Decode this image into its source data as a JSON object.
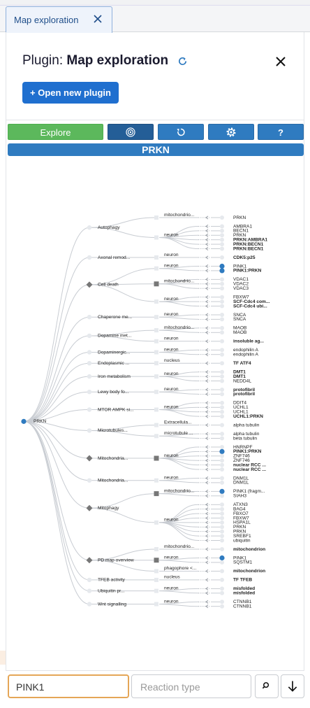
{
  "tab": "Map exploration",
  "header": {
    "prefix": "Plugin:",
    "title": "Map exploration"
  },
  "open_button": "Open new plugin",
  "toolbar": {
    "explore": "Explore",
    "help": "?"
  },
  "target": "PRKN",
  "tree": {
    "root": "PRKN",
    "children": [
      {
        "label": "Autophagy",
        "compartments": [
          {
            "label": "mitochondrio...",
            "leaves": [
              {
                "label": "PRKN"
              }
            ]
          },
          {
            "label": "neuron",
            "leaves": [
              {
                "label": "AMBRA1"
              },
              {
                "label": "BECN1"
              },
              {
                "label": "PRKN"
              },
              {
                "label": "PRKN:AMBRA1",
                "bold": true
              },
              {
                "label": "PRKN:BECN1",
                "bold": true
              },
              {
                "label": "PRKN:BECN1",
                "bold": true
              }
            ]
          }
        ]
      },
      {
        "label": "Axonal remod...",
        "compartments": [
          {
            "label": "neuron",
            "leaves": [
              {
                "label": "CDK5:p25",
                "bold": true
              }
            ]
          }
        ]
      },
      {
        "label": "Cell death",
        "marker": "diamond",
        "compartments": [
          {
            "label": "neuron",
            "leaves": [
              {
                "label": "PINK1",
                "highlight": true
              },
              {
                "label": "PINK1:PRKN",
                "bold": true,
                "highlight": true
              }
            ]
          },
          {
            "label": "mitochondrio...",
            "marker": "square",
            "leaves": [
              {
                "label": "VDAC1"
              },
              {
                "label": "VDAC2"
              },
              {
                "label": "VDAC3"
              }
            ]
          },
          {
            "label": "neuron",
            "leaves": [
              {
                "label": "FBXW7"
              },
              {
                "label": "SCF-Cdc4 com...",
                "bold": true
              },
              {
                "label": "SCF-Cdc4 ubi...",
                "bold": true
              }
            ]
          }
        ]
      },
      {
        "label": "Chaperone me...",
        "compartments": [
          {
            "label": "neuron",
            "leaves": [
              {
                "label": "SNCA"
              },
              {
                "label": "SNCA"
              }
            ]
          }
        ]
      },
      {
        "label": "Dopamine met...",
        "compartments": [
          {
            "label": "mitochondrio...",
            "leaves": [
              {
                "label": "MAOB"
              },
              {
                "label": "MAOB"
              }
            ]
          },
          {
            "label": "neuron",
            "leaves": [
              {
                "label": "insoluble ag...",
                "bold": true
              }
            ]
          }
        ]
      },
      {
        "label": "Dopaminergic...",
        "compartments": [
          {
            "label": "neuron",
            "leaves": [
              {
                "label": "endophilin A"
              },
              {
                "label": "endophilin A"
              }
            ]
          }
        ]
      },
      {
        "label": "Endoplasmic ...",
        "compartments": [
          {
            "label": "nucleus",
            "leaves": [
              {
                "label": "TF ATF4",
                "bold": true
              }
            ]
          }
        ]
      },
      {
        "label": "Iron metabolism",
        "compartments": [
          {
            "label": "neuron",
            "leaves": [
              {
                "label": "DMT1",
                "bold": true
              },
              {
                "label": "DMT1",
                "bold": true
              },
              {
                "label": "NEDD4L"
              }
            ]
          }
        ]
      },
      {
        "label": "Lewy body fo...",
        "compartments": [
          {
            "label": "neuron",
            "leaves": [
              {
                "label": "protofibril",
                "bold": true
              },
              {
                "label": "protofibril",
                "bold": true
              }
            ]
          }
        ]
      },
      {
        "label": "MTOR AMPK si...",
        "compartments": [
          {
            "label": "neuron",
            "leaves": [
              {
                "label": "DDIT4"
              },
              {
                "label": "UCHL1"
              },
              {
                "label": "UCHL1"
              },
              {
                "label": "UCHL1:PRKN",
                "bold": true
              }
            ]
          }
        ]
      },
      {
        "label": "Microtubules...",
        "compartments": [
          {
            "label": "Extracellula...",
            "leaves": [
              {
                "label": "alpha tubulin"
              }
            ]
          },
          {
            "label": "microtubule ...",
            "leaves": [
              {
                "label": "alpha tubulin"
              },
              {
                "label": "beta tubulin"
              }
            ]
          }
        ]
      },
      {
        "label": "Mitochondria...",
        "marker": "diamond",
        "compartments": [
          {
            "label": "neuron",
            "marker": "square",
            "leaves": [
              {
                "label": "HNRNPF"
              },
              {
                "label": "PINK1:PRKN",
                "bold": true,
                "highlight": true
              },
              {
                "label": "ZNF746"
              },
              {
                "label": "ZNF746"
              },
              {
                "label": "nuclear RCC ...",
                "bold": true
              },
              {
                "label": "nuclear RCC ...",
                "bold": true
              }
            ]
          }
        ]
      },
      {
        "label": "Mitochondria...",
        "compartments": [
          {
            "label": "neuron",
            "leaves": [
              {
                "label": "DNM1L"
              },
              {
                "label": "DNM1L"
              }
            ]
          }
        ]
      },
      {
        "label": "Mitophagy",
        "marker": "diamond",
        "compartments": [
          {
            "label": "mitochondrio...",
            "marker": "square",
            "leaves": [
              {
                "label": "PINK1 (fragm...",
                "highlight": true
              },
              {
                "label": "SIAH3"
              }
            ]
          },
          {
            "label": "neuron",
            "leaves": [
              {
                "label": "ATXN3"
              },
              {
                "label": "BAG4"
              },
              {
                "label": "FBXO7"
              },
              {
                "label": "FBXW7"
              },
              {
                "label": "HSPA1L"
              },
              {
                "label": "PRKN"
              },
              {
                "label": "PRKN"
              },
              {
                "label": "SREBF1"
              },
              {
                "label": "ubiquitin"
              }
            ]
          }
        ]
      },
      {
        "label": "PD map overview",
        "marker": "diamond",
        "compartments": [
          {
            "label": "mitochondrio...",
            "leaves": [
              {
                "label": "mitochondrion",
                "bold": true
              }
            ]
          },
          {
            "label": "neuron",
            "marker": "square",
            "leaves": [
              {
                "label": "PINK1",
                "highlight": true
              },
              {
                "label": "SQSTM1"
              }
            ]
          },
          {
            "label": "phagophore <...",
            "leaves": [
              {
                "label": "mitochondrion",
                "bold": true
              }
            ]
          }
        ]
      },
      {
        "label": "TFEB activity",
        "compartments": [
          {
            "label": "nucleus",
            "leaves": [
              {
                "label": "TF TFEB",
                "bold": true
              }
            ]
          }
        ]
      },
      {
        "label": "Ubiquitin pr...",
        "compartments": [
          {
            "label": "neuron",
            "leaves": [
              {
                "label": "misfolded",
                "bold": true
              },
              {
                "label": "misfolded",
                "bold": true
              }
            ]
          }
        ]
      },
      {
        "label": "Wnt signalling",
        "compartments": [
          {
            "label": "neuron",
            "leaves": [
              {
                "label": "CTNNB1"
              },
              {
                "label": "CTNNB1"
              }
            ]
          }
        ]
      }
    ]
  },
  "search": {
    "value": "PINK1",
    "placeholder": "Reaction type"
  }
}
